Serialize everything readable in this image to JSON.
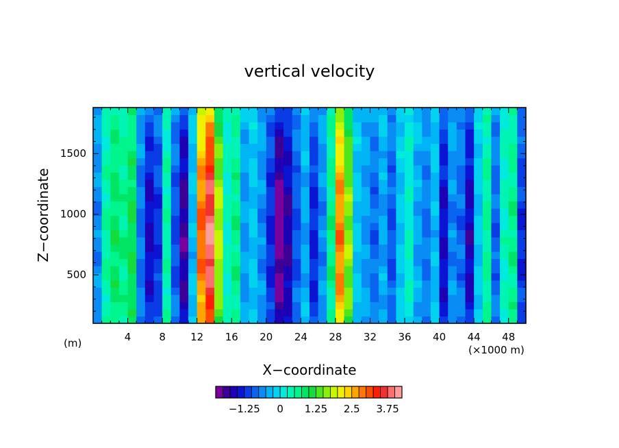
{
  "chart_data": {
    "type": "heatmap",
    "title": "vertical velocity",
    "xlabel": "X−coordinate",
    "ylabel": "Z−coordinate",
    "x_unit_label": "(×1000 m)",
    "y_unit_label": "(m)",
    "xlim": [
      0,
      50
    ],
    "ylim": [
      100,
      1880
    ],
    "x_ticks": [
      4,
      8,
      12,
      16,
      20,
      24,
      28,
      32,
      36,
      40,
      44,
      48
    ],
    "y_ticks": [
      500,
      1000,
      1500
    ],
    "grid": false,
    "colorbar": {
      "min": -2.25,
      "max": 4.25,
      "step": 0.25,
      "tick_values": [
        -1.25,
        0,
        1.25,
        2.5,
        3.75
      ],
      "tick_labels": [
        "−1.25",
        "0",
        "1.25",
        "2.5",
        "3.75"
      ],
      "colors": [
        "#7a009e",
        "#3c0096",
        "#1e00b4",
        "#0a14d2",
        "#0a3ce6",
        "#0a64f0",
        "#0a8cf5",
        "#00b4f5",
        "#00d2f0",
        "#00ebdc",
        "#00f5b4",
        "#00f58c",
        "#00e664",
        "#14dc3c",
        "#50e61e",
        "#8cf00a",
        "#c8f500",
        "#f0f000",
        "#ffd200",
        "#ffa500",
        "#ff7800",
        "#ff4b00",
        "#ff1e00",
        "#f03232",
        "#ff6e6e",
        "#ff9c9c"
      ]
    },
    "columns": [
      {
        "x": 0.5,
        "w": -0.6
      },
      {
        "x": 1.5,
        "w": 0.4
      },
      {
        "x": 2.5,
        "w": 0.8
      },
      {
        "x": 3.5,
        "w": 0.6
      },
      {
        "x": 4.5,
        "w": 0.9
      },
      {
        "x": 5.5,
        "w": -0.7
      },
      {
        "x": 6.5,
        "w": -1.4
      },
      {
        "x": 7.5,
        "w": -1.1
      },
      {
        "x": 8.5,
        "w": 0.4
      },
      {
        "x": 9.5,
        "w": -0.9
      },
      {
        "x": 10.5,
        "w": -1.7
      },
      {
        "x": 11.5,
        "w": -0.3
      },
      {
        "x": 12.5,
        "w": 2.7
      },
      {
        "x": 13.5,
        "w": 3.6
      },
      {
        "x": 14.5,
        "w": 1.6
      },
      {
        "x": 15.5,
        "w": 0.3
      },
      {
        "x": 16.5,
        "w": 0.6
      },
      {
        "x": 17.5,
        "w": -0.5
      },
      {
        "x": 18.5,
        "w": -0.2
      },
      {
        "x": 19.5,
        "w": -0.6
      },
      {
        "x": 20.5,
        "w": -1.2
      },
      {
        "x": 21.5,
        "w": -2.0
      },
      {
        "x": 22.5,
        "w": -1.6
      },
      {
        "x": 23.5,
        "w": -0.9
      },
      {
        "x": 24.5,
        "w": -0.4
      },
      {
        "x": 25.5,
        "w": -1.2
      },
      {
        "x": 26.5,
        "w": -0.6
      },
      {
        "x": 27.5,
        "w": 0.6
      },
      {
        "x": 28.5,
        "w": 2.6
      },
      {
        "x": 29.5,
        "w": 1.5
      },
      {
        "x": 30.5,
        "w": -0.2
      },
      {
        "x": 31.5,
        "w": -0.5
      },
      {
        "x": 32.5,
        "w": -0.8
      },
      {
        "x": 33.5,
        "w": -0.4
      },
      {
        "x": 34.5,
        "w": -0.9
      },
      {
        "x": 35.5,
        "w": -0.2
      },
      {
        "x": 36.5,
        "w": 0.2
      },
      {
        "x": 37.5,
        "w": -0.4
      },
      {
        "x": 38.5,
        "w": -0.7
      },
      {
        "x": 39.5,
        "w": -0.3
      },
      {
        "x": 40.5,
        "w": -1.4
      },
      {
        "x": 41.5,
        "w": -0.6
      },
      {
        "x": 42.5,
        "w": -0.8
      },
      {
        "x": 43.5,
        "w": -1.5
      },
      {
        "x": 44.5,
        "w": -0.2
      },
      {
        "x": 45.5,
        "w": 0.5
      },
      {
        "x": 46.5,
        "w": -0.8
      },
      {
        "x": 47.5,
        "w": 0.3
      },
      {
        "x": 48.5,
        "w": 0.6
      },
      {
        "x": 49.5,
        "w": -1.1
      }
    ]
  }
}
